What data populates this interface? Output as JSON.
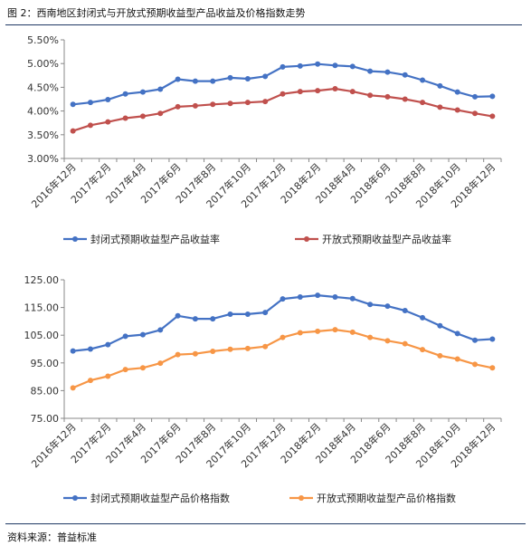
{
  "figure": {
    "title": "图 2：西南地区封闭式与开放式预期收益型产品收益及价格指数走势",
    "source": "资料来源：普益标准"
  },
  "chart_data": [
    {
      "type": "line",
      "x": [
        "2016年12月",
        "2017年1月",
        "2017年2月",
        "2017年3月",
        "2017年4月",
        "2017年5月",
        "2017年6月",
        "2017年7月",
        "2017年8月",
        "2017年9月",
        "2017年10月",
        "2017年11月",
        "2017年12月",
        "2018年1月",
        "2018年2月",
        "2018年3月",
        "2018年4月",
        "2018年5月",
        "2018年6月",
        "2018年7月",
        "2018年8月",
        "2018年9月",
        "2018年10月",
        "2018年11月",
        "2018年12月"
      ],
      "tick_labels": [
        "2016年12月",
        "2017年2月",
        "2017年4月",
        "2017年6月",
        "2017年8月",
        "2017年10月",
        "2017年12月",
        "2018年2月",
        "2018年4月",
        "2018年6月",
        "2018年8月",
        "2018年10月",
        "2018年12月"
      ],
      "yticks": [
        "3.00%",
        "3.50%",
        "4.00%",
        "4.50%",
        "5.00%",
        "5.50%"
      ],
      "ylim": [
        3.0,
        5.5
      ],
      "grid": false,
      "legend_position": "bottom",
      "series": [
        {
          "name": "封闭式预期收益型产品收益率",
          "color": "#4472c4",
          "values": [
            4.14,
            4.18,
            4.24,
            4.36,
            4.4,
            4.46,
            4.67,
            4.63,
            4.63,
            4.7,
            4.68,
            4.73,
            4.93,
            4.95,
            4.99,
            4.96,
            4.94,
            4.84,
            4.82,
            4.76,
            4.65,
            4.53,
            4.4,
            4.3,
            4.31
          ]
        },
        {
          "name": "开放式预期收益型产品收益率",
          "color": "#c0504d",
          "values": [
            3.58,
            3.7,
            3.77,
            3.85,
            3.89,
            3.95,
            4.09,
            4.11,
            4.14,
            4.16,
            4.18,
            4.2,
            4.36,
            4.41,
            4.43,
            4.47,
            4.41,
            4.33,
            4.3,
            4.25,
            4.18,
            4.08,
            4.02,
            3.95,
            3.89
          ]
        }
      ]
    },
    {
      "type": "line",
      "x": [
        "2016年12月",
        "2017年1月",
        "2017年2月",
        "2017年3月",
        "2017年4月",
        "2017年5月",
        "2017年6月",
        "2017年7月",
        "2017年8月",
        "2017年9月",
        "2017年10月",
        "2017年11月",
        "2017年12月",
        "2018年1月",
        "2018年2月",
        "2018年3月",
        "2018年4月",
        "2018年5月",
        "2018年6月",
        "2018年7月",
        "2018年8月",
        "2018年9月",
        "2018年10月",
        "2018年11月",
        "2018年12月"
      ],
      "tick_labels": [
        "2016年12月",
        "2017年2月",
        "2017年4月",
        "2017年6月",
        "2017年8月",
        "2017年10月",
        "2017年12月",
        "2018年2月",
        "2018年4月",
        "2018年6月",
        "2018年8月",
        "2018年10月",
        "2018年12月"
      ],
      "yticks": [
        "75.00",
        "85.00",
        "95.00",
        "105.00",
        "115.00",
        "125.00"
      ],
      "ylim": [
        75,
        125
      ],
      "grid": false,
      "legend_position": "bottom",
      "series": [
        {
          "name": "封闭式预期收益型产品价格指数",
          "color": "#4472c4",
          "values": [
            99.3,
            100.0,
            101.6,
            104.6,
            105.2,
            106.9,
            112.0,
            110.9,
            110.9,
            112.6,
            112.6,
            113.2,
            118.1,
            118.8,
            119.4,
            118.8,
            118.2,
            116.1,
            115.5,
            113.9,
            111.3,
            108.4,
            105.6,
            103.2,
            103.6
          ]
        },
        {
          "name": "开放式预期收益型产品价格指数",
          "color": "#f79646",
          "values": [
            86.0,
            88.7,
            90.2,
            92.6,
            93.2,
            94.9,
            98.0,
            98.3,
            99.2,
            99.9,
            100.2,
            100.9,
            104.2,
            105.9,
            106.4,
            107.0,
            106.1,
            104.2,
            103.0,
            101.9,
            99.8,
            97.6,
            96.4,
            94.5,
            93.2
          ]
        }
      ]
    }
  ]
}
